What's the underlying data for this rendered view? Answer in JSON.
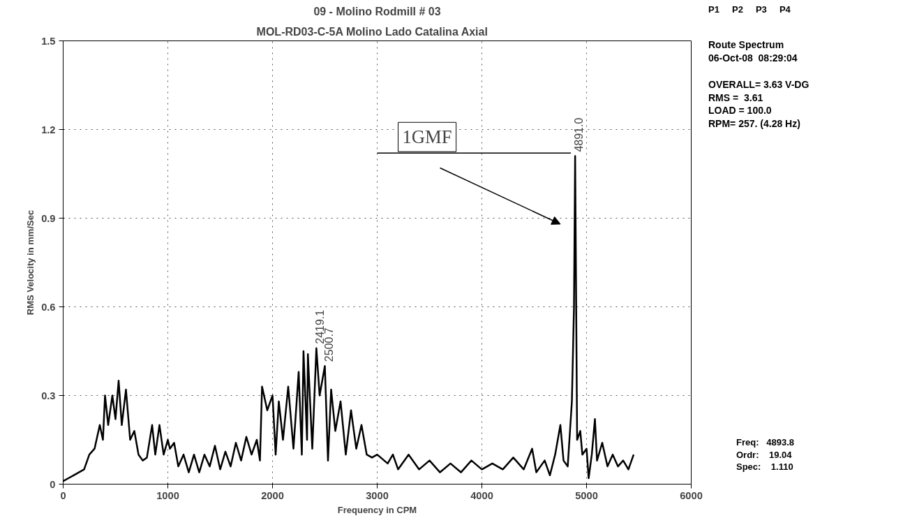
{
  "chart_data": {
    "type": "line",
    "title": "09 - Molino Rodmill # 03",
    "subtitle": "MOL-RD03-C-5A    Molino Lado Catalina Axial",
    "xlabel": "Frequency in CPM",
    "ylabel": "RMS Velocity in mm/Sec",
    "xlim": [
      0,
      6000
    ],
    "ylim": [
      0,
      1.5
    ],
    "xticks": [
      0,
      1000,
      2000,
      3000,
      4000,
      5000,
      6000
    ],
    "yticks": [
      {
        "value": 0,
        "label": "0"
      },
      {
        "value": 0.3,
        "label": "0.3"
      },
      {
        "value": 0.6,
        "label": "0.6"
      },
      {
        "value": 0.9,
        "label": "0.9"
      },
      {
        "value": 1.2,
        "label": "1.2"
      },
      {
        "value": 1.5,
        "label": "1.5"
      }
    ],
    "grid": true,
    "line_style": "solid",
    "marker": "none",
    "series": [
      {
        "color": "#000000",
        "x": [
          0,
          50,
          100,
          150,
          200,
          250,
          300,
          350,
          380,
          400,
          430,
          470,
          500,
          530,
          560,
          600,
          640,
          680,
          720,
          760,
          800,
          850,
          880,
          920,
          960,
          1000,
          1020,
          1060,
          1100,
          1150,
          1200,
          1250,
          1300,
          1350,
          1400,
          1450,
          1500,
          1550,
          1600,
          1650,
          1700,
          1750,
          1800,
          1850,
          1880,
          1900,
          1950,
          2000,
          2030,
          2060,
          2100,
          2150,
          2200,
          2250,
          2280,
          2296,
          2330,
          2338,
          2380,
          2419,
          2450,
          2500,
          2530,
          2560,
          2600,
          2650,
          2700,
          2750,
          2800,
          2850,
          2900,
          2950,
          3000,
          3100,
          3150,
          3200,
          3300,
          3400,
          3500,
          3600,
          3700,
          3800,
          3900,
          4000,
          4100,
          4200,
          4300,
          4400,
          4480,
          4520,
          4600,
          4650,
          4700,
          4750,
          4780,
          4820,
          4860,
          4880,
          4891,
          4910,
          4940,
          4960,
          5000,
          5020,
          5050,
          5080,
          5100,
          5150,
          5200,
          5250,
          5300,
          5350,
          5400,
          5450
        ],
        "values": [
          0.01,
          0.02,
          0.03,
          0.04,
          0.05,
          0.1,
          0.12,
          0.2,
          0.15,
          0.3,
          0.2,
          0.3,
          0.22,
          0.35,
          0.2,
          0.32,
          0.15,
          0.18,
          0.1,
          0.08,
          0.09,
          0.2,
          0.1,
          0.2,
          0.1,
          0.15,
          0.12,
          0.14,
          0.06,
          0.1,
          0.04,
          0.1,
          0.04,
          0.1,
          0.06,
          0.13,
          0.05,
          0.11,
          0.06,
          0.14,
          0.08,
          0.16,
          0.1,
          0.15,
          0.08,
          0.33,
          0.25,
          0.3,
          0.1,
          0.28,
          0.15,
          0.33,
          0.12,
          0.38,
          0.1,
          0.45,
          0.15,
          0.44,
          0.12,
          0.46,
          0.3,
          0.4,
          0.08,
          0.32,
          0.18,
          0.28,
          0.1,
          0.25,
          0.12,
          0.2,
          0.1,
          0.09,
          0.1,
          0.07,
          0.1,
          0.05,
          0.1,
          0.05,
          0.08,
          0.04,
          0.07,
          0.04,
          0.08,
          0.05,
          0.07,
          0.05,
          0.09,
          0.05,
          0.12,
          0.04,
          0.08,
          0.03,
          0.1,
          0.2,
          0.08,
          0.06,
          0.28,
          0.6,
          1.11,
          0.15,
          0.18,
          0.1,
          0.12,
          0.02,
          0.1,
          0.22,
          0.08,
          0.14,
          0.06,
          0.1,
          0.06,
          0.08,
          0.05,
          0.1
        ]
      }
    ],
    "annotations": [
      "P1",
      "P2",
      "P3",
      "P4",
      "Route Spectrum",
      "06-Oct-08  08:29:04",
      "OVERALL= 3.63 V-DG",
      "RMS =  3.61",
      "LOAD = 100.0",
      "RPM= 257. (4.28 Hz)",
      "Freq:   4893.8",
      "Ordr:    19.04",
      "Spec:    1.110",
      {
        "text": "2419.1",
        "x": 2419,
        "y": 0.46
      },
      {
        "text": "2500.7",
        "x": 2500,
        "y": 0.4
      },
      {
        "text": "4891.0",
        "x": 4891,
        "y": 1.11
      },
      "1GMF"
    ]
  }
}
